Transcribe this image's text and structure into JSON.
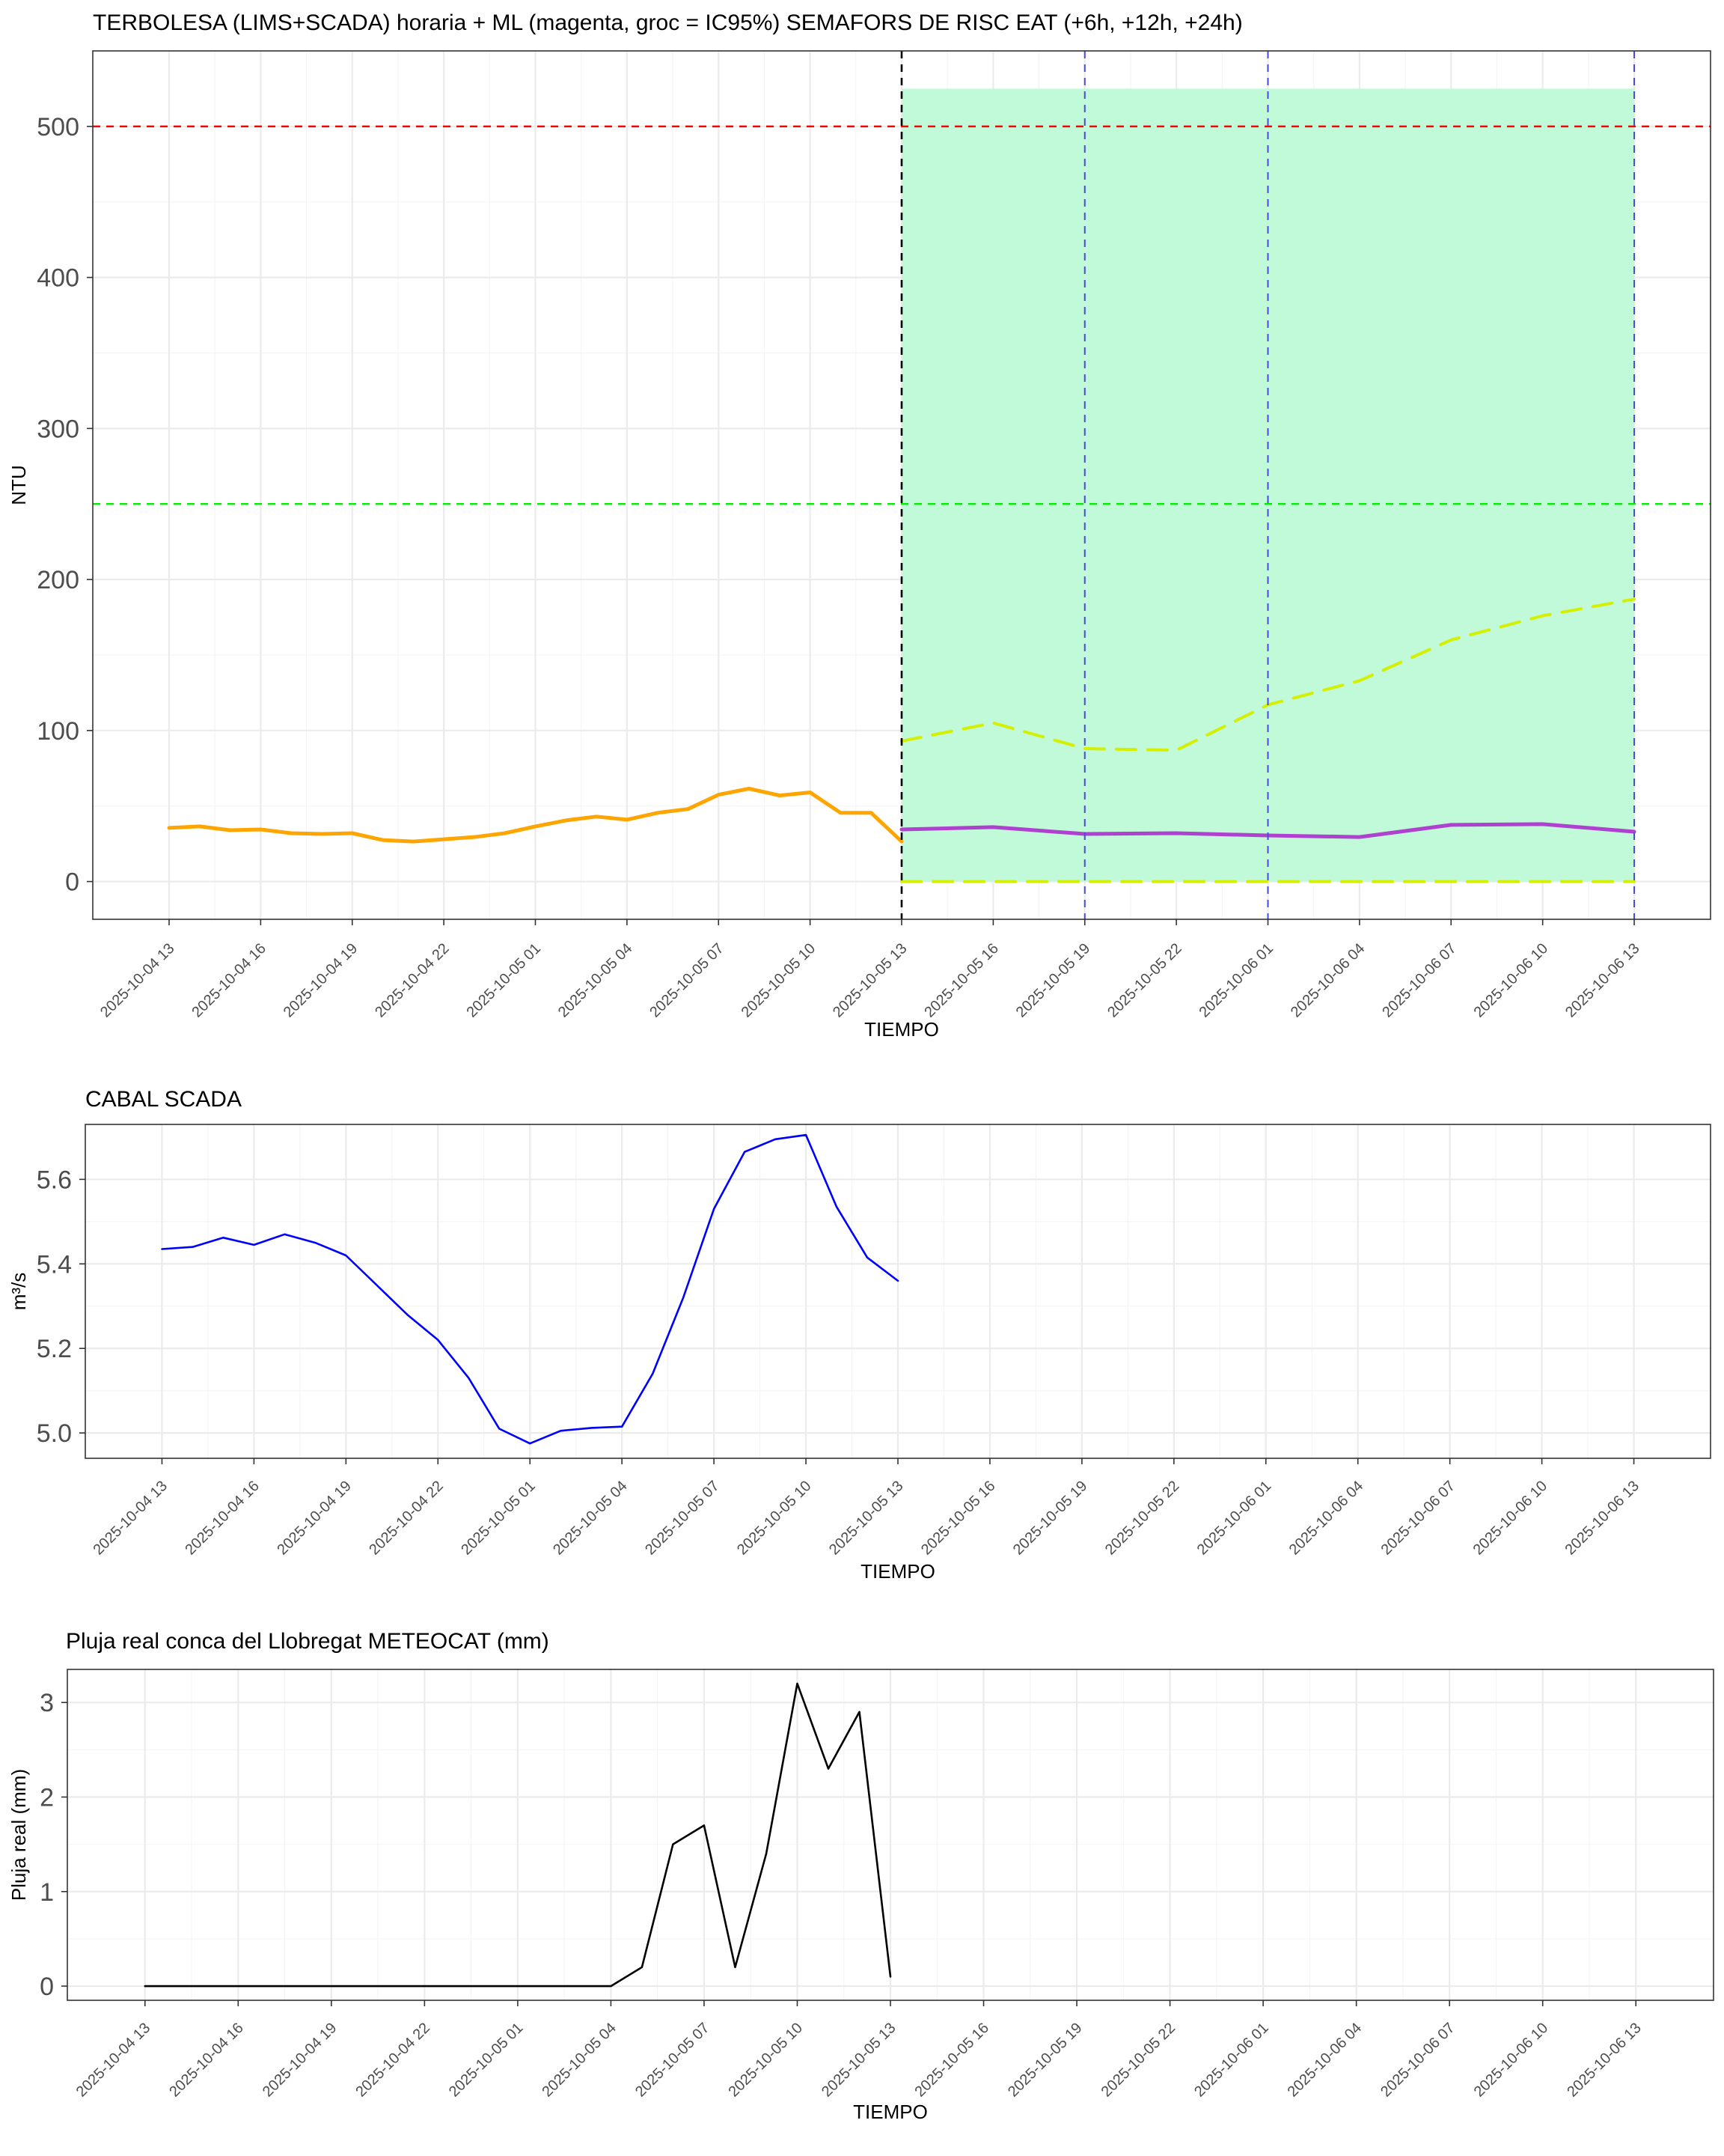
{
  "colors": {
    "observed_turbidity": "#ffa500",
    "forecast_turbidity": "#b040d0",
    "ci95": "#d4f000",
    "band": "#c0fad9",
    "threshold_high": "#ff0000",
    "threshold_low": "#00ee00",
    "now_line": "#000000",
    "horizon_lines": "#4a4ae0",
    "flow_line": "#0000ff",
    "rain_line": "#000000"
  },
  "x_ticks": [
    "2025-10-04 13",
    "2025-10-04 16",
    "2025-10-04 19",
    "2025-10-04 22",
    "2025-10-05 01",
    "2025-10-05 04",
    "2025-10-05 07",
    "2025-10-05 10",
    "2025-10-05 13",
    "2025-10-05 16",
    "2025-10-05 19",
    "2025-10-05 22",
    "2025-10-06 01",
    "2025-10-06 04",
    "2025-10-06 07",
    "2025-10-06 10",
    "2025-10-06 13"
  ],
  "chart_data": [
    {
      "type": "line",
      "title": "TERBOLESA (LIMS+SCADA) horaria + ML (magenta, groc = IC95%) SEMAFORS DE RISC EAT (+6h, +12h, +24h)",
      "xlabel": "TIEMPO",
      "ylabel": "NTU",
      "x_unit": "hours from 2025-10-04 13:00",
      "xlim": [
        "2025-10-04 10:30",
        "2025-10-06 15:30"
      ],
      "ylim": [
        -25,
        550
      ],
      "yticks": [
        0,
        100,
        200,
        300,
        400,
        500
      ],
      "grid": true,
      "thresholds": [
        {
          "value": 500,
          "color": "red",
          "style": "dashed"
        },
        {
          "value": 250,
          "color": "green",
          "style": "dashed"
        }
      ],
      "vertical_lines": [
        {
          "x": "2025-10-05 13",
          "color": "black",
          "style": "dashed"
        },
        {
          "x": "2025-10-05 19",
          "color": "blue",
          "style": "dashed"
        },
        {
          "x": "2025-10-06 01",
          "color": "blue",
          "style": "dashed"
        },
        {
          "x": "2025-10-06 13",
          "color": "blue",
          "style": "dashed"
        }
      ],
      "band": {
        "x_from": "2025-10-05 13",
        "x_to": "2025-10-06 13",
        "y_from": 0,
        "y_to": 525
      },
      "series": [
        {
          "role": "observed",
          "x": [
            "2025-10-04 13",
            "2025-10-04 14",
            "2025-10-04 15",
            "2025-10-04 16",
            "2025-10-04 17",
            "2025-10-04 18",
            "2025-10-04 19",
            "2025-10-04 20",
            "2025-10-04 21",
            "2025-10-04 22",
            "2025-10-04 23",
            "2025-10-05 00",
            "2025-10-05 01",
            "2025-10-05 02",
            "2025-10-05 03",
            "2025-10-05 04",
            "2025-10-05 05",
            "2025-10-05 06",
            "2025-10-05 07",
            "2025-10-05 08",
            "2025-10-05 09",
            "2025-10-05 10",
            "2025-10-05 11",
            "2025-10-05 12",
            "2025-10-05 13"
          ],
          "y": [
            35.5,
            36.5,
            34,
            34.5,
            32,
            31.5,
            32,
            27.5,
            26.5,
            28,
            29.5,
            32,
            36.5,
            40.5,
            43,
            41,
            45.5,
            48,
            57.5,
            61.5,
            57,
            59,
            45.5,
            45.5,
            26.5
          ]
        },
        {
          "role": "forecast",
          "x": [
            "2025-10-05 13",
            "2025-10-05 16",
            "2025-10-05 19",
            "2025-10-05 22",
            "2025-10-06 01",
            "2025-10-06 04",
            "2025-10-06 07",
            "2025-10-06 10",
            "2025-10-06 13"
          ],
          "y": [
            34.5,
            36,
            31.5,
            32,
            30.5,
            29.5,
            37.5,
            38,
            33
          ]
        },
        {
          "role": "ci95_upper",
          "x": [
            "2025-10-05 13",
            "2025-10-05 16",
            "2025-10-05 19",
            "2025-10-05 22",
            "2025-10-06 01",
            "2025-10-06 04",
            "2025-10-06 07",
            "2025-10-06 10",
            "2025-10-06 13"
          ],
          "y": [
            93,
            105,
            88,
            87,
            117,
            133,
            160,
            176,
            187
          ]
        },
        {
          "role": "ci95_lower",
          "x": [
            "2025-10-05 13",
            "2025-10-06 13"
          ],
          "y": [
            0,
            0
          ]
        }
      ]
    },
    {
      "type": "line",
      "title": "CABAL SCADA",
      "xlabel": "TIEMPO",
      "ylabel": "m³/s",
      "x_unit": "hours from 2025-10-04 13:00",
      "xlim": [
        "2025-10-04 10:30",
        "2025-10-06 15:30"
      ],
      "ylim": [
        4.94,
        5.73
      ],
      "yticks": [
        "5.0",
        "5.2",
        "5.4",
        "5.6"
      ],
      "grid": true,
      "series": [
        {
          "x": [
            "2025-10-04 13",
            "2025-10-04 14",
            "2025-10-04 15",
            "2025-10-04 16",
            "2025-10-04 17",
            "2025-10-04 18",
            "2025-10-04 19",
            "2025-10-04 20",
            "2025-10-04 21",
            "2025-10-04 22",
            "2025-10-04 23",
            "2025-10-05 00",
            "2025-10-05 01",
            "2025-10-05 02",
            "2025-10-05 03",
            "2025-10-05 04",
            "2025-10-05 05",
            "2025-10-05 06",
            "2025-10-05 07",
            "2025-10-05 08",
            "2025-10-05 09",
            "2025-10-05 10",
            "2025-10-05 11",
            "2025-10-05 12",
            "2025-10-05 13"
          ],
          "y": [
            5.435,
            5.44,
            5.462,
            5.445,
            5.47,
            5.45,
            5.42,
            5.35,
            5.28,
            5.22,
            5.13,
            5.01,
            4.975,
            5.005,
            5.012,
            5.015,
            5.14,
            5.32,
            5.53,
            5.665,
            5.695,
            5.705,
            5.535,
            5.415,
            5.36
          ]
        }
      ]
    },
    {
      "type": "line",
      "title": "Pluja real conca del Llobregat METEOCAT (mm)",
      "xlabel": "TIEMPO",
      "ylabel": "Pluja real (mm)",
      "x_unit": "hours from 2025-10-04 13:00",
      "xlim": [
        "2025-10-04 10:30",
        "2025-10-06 15:30"
      ],
      "ylim": [
        -0.15,
        3.35
      ],
      "yticks": [
        0,
        1,
        2,
        3
      ],
      "grid": true,
      "series": [
        {
          "x": [
            "2025-10-04 13",
            "2025-10-04 14",
            "2025-10-04 15",
            "2025-10-04 16",
            "2025-10-04 17",
            "2025-10-04 18",
            "2025-10-04 19",
            "2025-10-04 20",
            "2025-10-04 21",
            "2025-10-04 22",
            "2025-10-04 23",
            "2025-10-05 00",
            "2025-10-05 01",
            "2025-10-05 02",
            "2025-10-05 03",
            "2025-10-05 04",
            "2025-10-05 05",
            "2025-10-05 06",
            "2025-10-05 07",
            "2025-10-05 08",
            "2025-10-05 09",
            "2025-10-05 10",
            "2025-10-05 11",
            "2025-10-05 12",
            "2025-10-05 13"
          ],
          "y": [
            0,
            0,
            0,
            0,
            0,
            0,
            0,
            0,
            0,
            0,
            0,
            0,
            0,
            0,
            0,
            0,
            0.2,
            1.5,
            1.7,
            0.2,
            1.4,
            3.2,
            2.3,
            2.9,
            0.1
          ]
        }
      ]
    }
  ]
}
